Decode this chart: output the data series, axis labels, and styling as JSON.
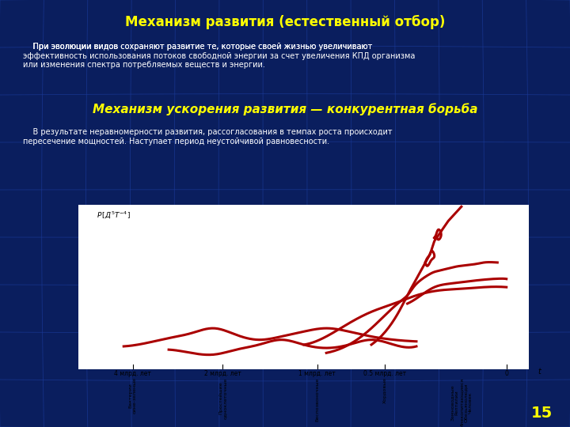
{
  "title": "Механизм развития (естественный отбор)",
  "title_color": "#FFFF00",
  "title_fontsize": 12,
  "subtitle": "Механизм ускорения развития — конкурентная борьба",
  "subtitle_color": "#FFFF00",
  "subtitle_fontsize": 11,
  "body_text1_parts": [
    {
      "text": "    При эволюции видов ",
      "bold": false
    },
    {
      "text": "сохраняют развитие те, которые своей жизнью увеличивают",
      "bold": true
    },
    {
      "text": "\n",
      "bold": false
    },
    {
      "text": "эффективность использования потоков свободной энергии за счет увеличения КПД организма",
      "bold": true
    },
    {
      "text": "\nили изменения спектра потребляемых веществ и энергии.",
      "bold": false
    }
  ],
  "body_text2_parts": [
    {
      "text": "    В результате неравномерности развития, рассогласования в темпах роста происходит\n",
      "bold": true
    },
    {
      "text": "пересечение мощностей.",
      "bold": true
    },
    {
      "text": " Наступает период неустойчивой равновессности.",
      "bold": false
    }
  ],
  "bg_color_outer": "#0a1e5e",
  "bg_color_chart": "#FFFFFF",
  "page_number": "15",
  "line_color": "#AA0000",
  "line_width": 2.2,
  "grid_color": "#1a3a99",
  "grid_alpha": 0.7
}
